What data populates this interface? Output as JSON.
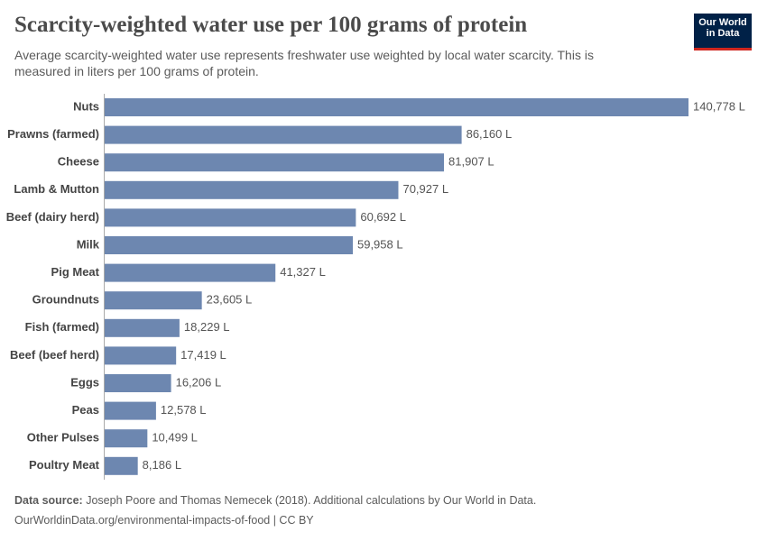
{
  "chart_data": {
    "type": "bar",
    "orientation": "horizontal",
    "title": "Scarcity-weighted water use per 100 grams of protein",
    "subtitle": "Average scarcity-weighted water use represents freshwater use weighted by local water scarcity. This is measured in liters per 100 grams of protein.",
    "categories": [
      "Nuts",
      "Prawns (farmed)",
      "Cheese",
      "Lamb & Mutton",
      "Beef (dairy herd)",
      "Milk",
      "Pig Meat",
      "Groundnuts",
      "Fish (farmed)",
      "Beef (beef herd)",
      "Eggs",
      "Peas",
      "Other Pulses",
      "Poultry Meat"
    ],
    "values": [
      140778,
      86160,
      81907,
      70927,
      60692,
      59958,
      41327,
      23605,
      18229,
      17419,
      16206,
      12578,
      10499,
      8186
    ],
    "value_labels": [
      "140,778 L",
      "86,160 L",
      "81,907 L",
      "70,927 L",
      "60,692 L",
      "59,958 L",
      "41,327 L",
      "23,605 L",
      "18,229 L",
      "17,419 L",
      "16,206 L",
      "12,578 L",
      "10,499 L",
      "8,186 L"
    ],
    "color": "#6d87b0",
    "source_label": "Data source:",
    "source": "Joseph Poore and Thomas Nemecek (2018). Additional calculations by Our World in Data.",
    "url": "OurWorldinData.org/environmental-impacts-of-food | CC BY"
  },
  "logo": [
    "Our World",
    "in Data"
  ]
}
